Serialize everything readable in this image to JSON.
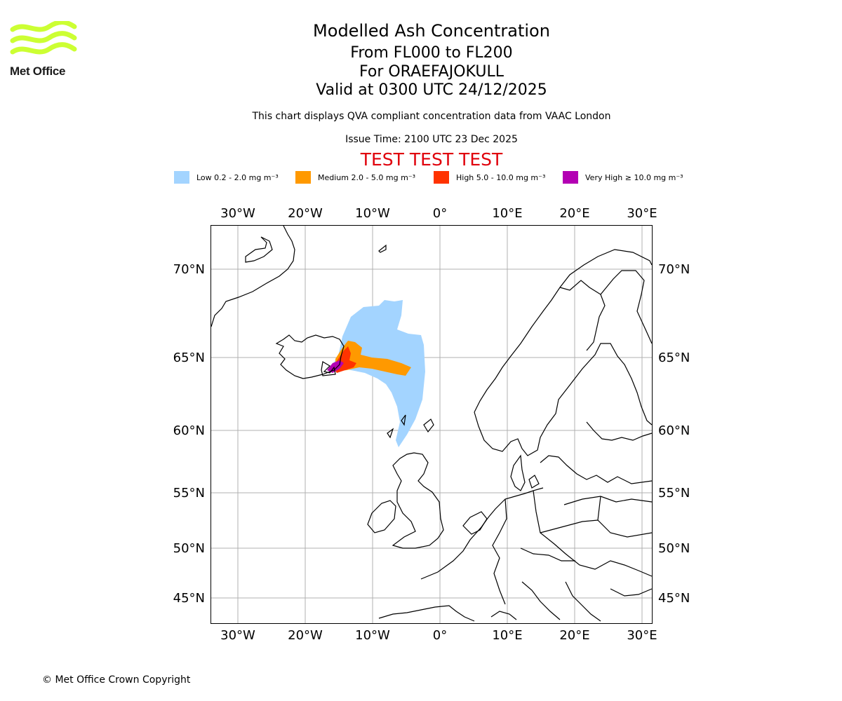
{
  "logo": {
    "text": "Met Office",
    "color": "#ccff33"
  },
  "title": {
    "line1": "Modelled Ash Concentration",
    "line2": "From FL000 to FL200",
    "line3": "For ORAEFAJOKULL",
    "line4": "Valid at 0300 UTC 24/12/2025"
  },
  "subtitle": "This chart displays QVA compliant concentration data from VAAC London",
  "issue_time": "Issue Time: 2100 UTC 23 Dec 2025",
  "test_banner": "TEST TEST TEST",
  "legend": [
    {
      "label": "Low 0.2 - 2.0 mg m⁻³",
      "color": "#a3d4ff"
    },
    {
      "label": "Medium 2.0 - 5.0 mg m⁻³",
      "color": "#ff9900"
    },
    {
      "label": "High 5.0 - 10.0 mg m⁻³",
      "color": "#ff3300"
    },
    {
      "label": "Very High ≥ 10.0 mg m⁻³",
      "color": "#b300b3"
    }
  ],
  "map": {
    "lon_labels": [
      "30°W",
      "20°W",
      "10°W",
      "0°",
      "10°E",
      "20°E",
      "30°E"
    ],
    "lat_labels": [
      "70°N",
      "65°N",
      "60°N",
      "55°N",
      "50°N",
      "45°N"
    ]
  },
  "copyright": "© Met Office Crown Copyright"
}
